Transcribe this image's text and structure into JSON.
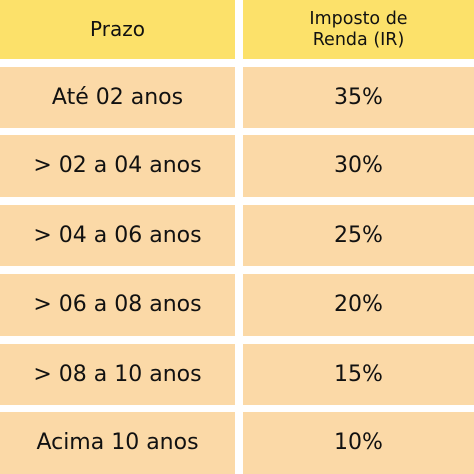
{
  "colors": {
    "header_background": "#FCE16A",
    "row_background": "#FBD9A7",
    "separator": "#FFFFFF",
    "text": "#111111"
  },
  "table": {
    "headers": {
      "prazo": "Prazo",
      "imposto_line1": "Imposto de",
      "imposto_line2": "Renda (IR)"
    },
    "rows": [
      {
        "prazo": "Até 02 anos",
        "imposto": "35%"
      },
      {
        "prazo": "> 02 a 04 anos",
        "imposto": "30%"
      },
      {
        "prazo": "> 04 a 06 anos",
        "imposto": "25%"
      },
      {
        "prazo": "> 06 a 08 anos",
        "imposto": "20%"
      },
      {
        "prazo": "> 08 a 10 anos",
        "imposto": "15%"
      },
      {
        "prazo": "Acima 10 anos",
        "imposto": "10%"
      }
    ]
  }
}
